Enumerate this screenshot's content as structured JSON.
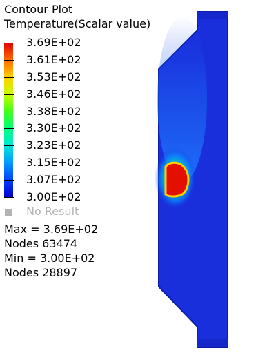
{
  "legend": {
    "title": "Contour Plot",
    "subtitle": "Temperature(Scalar value)",
    "levels": [
      "3.69E+02",
      "3.61E+02",
      "3.53E+02",
      "3.46E+02",
      "3.38E+02",
      "3.30E+02",
      "3.23E+02",
      "3.15E+02",
      "3.07E+02",
      "3.00E+02"
    ],
    "colors": [
      "#e00000",
      "#ff6a00",
      "#ffcf00",
      "#c8ff00",
      "#3fff1a",
      "#00ff7b",
      "#00e8d6",
      "#0098ff",
      "#0040ff",
      "#0000cc"
    ],
    "no_result_label": "No Result",
    "no_result_color": "#b3b3b3"
  },
  "stats": {
    "max": "Max =  3.69E+02",
    "nodes_max": "Nodes 63474",
    "min": "Min =  3.00E+02",
    "nodes_min": "Nodes 28897"
  }
}
